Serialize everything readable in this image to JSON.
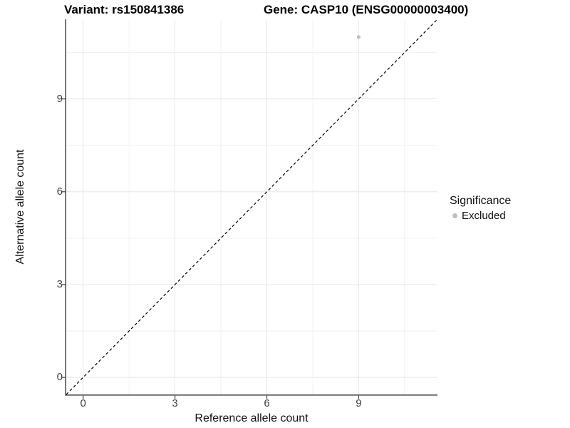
{
  "figure": {
    "title_left": "Variant: rs150841386",
    "title_right": "Gene: CASP10 (ENSG00000003400)"
  },
  "chart_data": {
    "type": "scatter",
    "title": "Variant: rs150841386 | Gene: CASP10 (ENSG00000003400)",
    "xlabel": "Reference allele count",
    "ylabel": "Alternative allele count",
    "xlim": [
      -0.55,
      11.55
    ],
    "ylim": [
      -0.55,
      11.55
    ],
    "x_ticks": [
      0,
      3,
      6,
      9
    ],
    "y_ticks": [
      0,
      3,
      6,
      9
    ],
    "x_minor_gridlines": [
      1.5,
      4.5,
      7.5,
      10.5
    ],
    "y_minor_gridlines": [
      1.5,
      4.5,
      7.5,
      10.5
    ],
    "grid": true,
    "legend_position": "right",
    "points": [
      {
        "x": 9,
        "y": 11,
        "significance": "Excluded",
        "color": "#bebebe"
      }
    ],
    "reference_line": {
      "slope": 1,
      "intercept": 0,
      "style": "dashed",
      "color": "#000000"
    },
    "legend": {
      "title": "Significance",
      "entries": [
        {
          "label": "Excluded",
          "color": "#bebebe"
        }
      ]
    },
    "colors": {
      "background": "#ffffff",
      "grid_major": "#e6e6e6",
      "grid_minor": "#f2f2f2",
      "axis": "#4d4d4d",
      "tick_label": "#404040",
      "text": "#000000"
    }
  }
}
